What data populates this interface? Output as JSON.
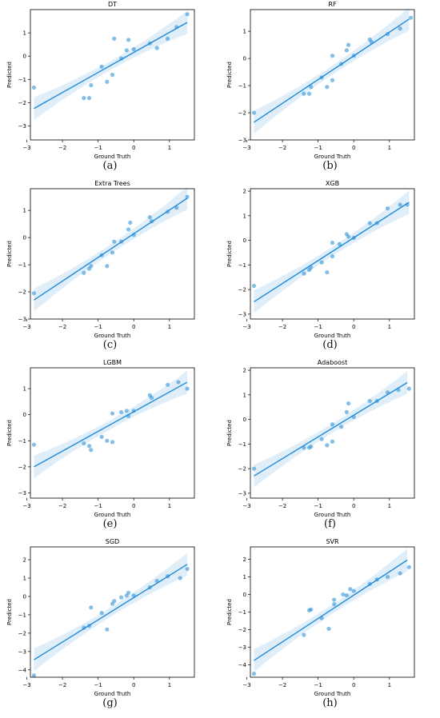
{
  "figure": {
    "captions": [
      "(a)",
      "(b)",
      "(c)",
      "(d)",
      "(e)",
      "(f)",
      "(g)",
      "(h)"
    ]
  },
  "chart_data": [
    {
      "type": "scatter",
      "title": "DT",
      "xlabel": "Ground Truth",
      "ylabel": "Predicted",
      "xlim": [
        -2.9,
        1.7
      ],
      "ylim": [
        -3.6,
        2.0
      ],
      "xticks": [
        -3,
        -2,
        -1,
        0,
        1
      ],
      "yticks": [
        -3,
        -2,
        -1,
        0,
        1
      ],
      "tick_labels_x": [
        "−3",
        "−2",
        "−1",
        "0",
        "1"
      ],
      "tick_labels_y": [
        "−3",
        "−2",
        "−1",
        "0",
        "1"
      ],
      "points": [
        [
          -2.8,
          -1.35
        ],
        [
          -1.4,
          -1.8
        ],
        [
          -1.25,
          -1.8
        ],
        [
          -1.2,
          -1.25
        ],
        [
          -0.9,
          -0.45
        ],
        [
          -0.75,
          -1.1
        ],
        [
          -0.6,
          -0.8
        ],
        [
          -0.55,
          0.75
        ],
        [
          -0.35,
          -0.1
        ],
        [
          -0.2,
          0.25
        ],
        [
          -0.15,
          0.7
        ],
        [
          0.0,
          0.3
        ],
        [
          0.45,
          0.55
        ],
        [
          0.65,
          0.35
        ],
        [
          0.95,
          0.75
        ],
        [
          1.2,
          1.25
        ],
        [
          1.5,
          1.8
        ]
      ],
      "fit": [
        [
          -2.8,
          -2.25
        ],
        [
          1.5,
          1.45
        ]
      ],
      "grid": false,
      "color": "#1f8ad6"
    },
    {
      "type": "scatter",
      "title": "RF",
      "xlabel": "Ground Truth",
      "ylabel": "Predicted",
      "xlim": [
        -2.9,
        1.7
      ],
      "ylim": [
        -3.0,
        1.8
      ],
      "xticks": [
        -3,
        -2,
        -1,
        0,
        1
      ],
      "yticks": [
        -3,
        -2,
        -1,
        0,
        1
      ],
      "tick_labels_x": [
        "−3",
        "−2",
        "−1",
        "0",
        "1"
      ],
      "tick_labels_y": [
        "−3",
        "−2",
        "−1",
        "0",
        "1"
      ],
      "points": [
        [
          -2.8,
          -2.0
        ],
        [
          -1.4,
          -1.3
        ],
        [
          -1.25,
          -1.3
        ],
        [
          -1.2,
          -1.05
        ],
        [
          -0.9,
          -0.7
        ],
        [
          -0.75,
          -1.05
        ],
        [
          -0.6,
          -0.8
        ],
        [
          -0.6,
          0.1
        ],
        [
          -0.35,
          -0.2
        ],
        [
          -0.2,
          0.3
        ],
        [
          -0.15,
          0.5
        ],
        [
          0.0,
          0.1
        ],
        [
          0.45,
          0.7
        ],
        [
          0.5,
          0.6
        ],
        [
          0.95,
          0.9
        ],
        [
          1.3,
          1.1
        ],
        [
          1.6,
          1.5
        ]
      ],
      "fit": [
        [
          -2.8,
          -2.35
        ],
        [
          1.55,
          1.45
        ]
      ],
      "grid": false,
      "color": "#1f8ad6"
    },
    {
      "type": "scatter",
      "title": "Extra Trees",
      "xlabel": "Ground Truth",
      "ylabel": "Predicted",
      "xlim": [
        -2.9,
        1.7
      ],
      "ylim": [
        -3.0,
        1.8
      ],
      "xticks": [
        -3,
        -2,
        -1,
        0,
        1
      ],
      "yticks": [
        -3,
        -2,
        -1,
        0,
        1
      ],
      "tick_labels_x": [
        "−3",
        "−2",
        "−1",
        "0",
        "1"
      ],
      "tick_labels_y": [
        "−3",
        "−2",
        "−1",
        "0",
        "1"
      ],
      "points": [
        [
          -2.8,
          -2.05
        ],
        [
          -1.4,
          -1.3
        ],
        [
          -1.25,
          -1.15
        ],
        [
          -1.2,
          -1.05
        ],
        [
          -0.9,
          -0.65
        ],
        [
          -0.75,
          -1.05
        ],
        [
          -0.6,
          -0.55
        ],
        [
          -0.55,
          -0.15
        ],
        [
          -0.35,
          -0.15
        ],
        [
          -0.15,
          0.3
        ],
        [
          -0.1,
          0.55
        ],
        [
          0.0,
          0.1
        ],
        [
          0.45,
          0.75
        ],
        [
          0.5,
          0.6
        ],
        [
          0.95,
          0.95
        ],
        [
          1.2,
          1.1
        ],
        [
          1.5,
          1.5
        ]
      ],
      "fit": [
        [
          -2.8,
          -2.3
        ],
        [
          1.5,
          1.45
        ]
      ],
      "grid": false,
      "color": "#1f8ad6"
    },
    {
      "type": "scatter",
      "title": "XGB",
      "xlabel": "Ground Truth",
      "ylabel": "Predicted",
      "xlim": [
        -2.9,
        1.7
      ],
      "ylim": [
        -3.2,
        2.1
      ],
      "xticks": [
        -3,
        -2,
        -1,
        0,
        1
      ],
      "yticks": [
        -3,
        -2,
        -1,
        0,
        1,
        2
      ],
      "tick_labels_x": [
        "−3",
        "−2",
        "−1",
        "0",
        "1"
      ],
      "tick_labels_y": [
        "−3",
        "−2",
        "−1",
        "0",
        "1",
        "2"
      ],
      "points": [
        [
          -2.8,
          -1.85
        ],
        [
          -1.4,
          -1.35
        ],
        [
          -1.25,
          -1.2
        ],
        [
          -1.2,
          -1.1
        ],
        [
          -0.9,
          -0.9
        ],
        [
          -0.75,
          -1.3
        ],
        [
          -0.6,
          -0.65
        ],
        [
          -0.6,
          -0.1
        ],
        [
          -0.4,
          -0.15
        ],
        [
          -0.2,
          0.25
        ],
        [
          -0.15,
          0.15
        ],
        [
          0.0,
          0.1
        ],
        [
          0.45,
          0.7
        ],
        [
          0.65,
          0.7
        ],
        [
          0.95,
          1.3
        ],
        [
          1.3,
          1.45
        ],
        [
          1.5,
          1.45
        ]
      ],
      "fit": [
        [
          -2.8,
          -2.5
        ],
        [
          1.55,
          1.55
        ]
      ],
      "grid": false,
      "color": "#1f8ad6"
    },
    {
      "type": "scatter",
      "title": "LGBM",
      "xlabel": "Ground Truth",
      "ylabel": "Predicted",
      "xlim": [
        -2.9,
        1.7
      ],
      "ylim": [
        -3.2,
        1.8
      ],
      "xticks": [
        -3,
        -2,
        -1,
        0,
        1
      ],
      "yticks": [
        -3,
        -2,
        -1,
        0,
        1
      ],
      "tick_labels_x": [
        "−3",
        "−2",
        "−1",
        "0",
        "1"
      ],
      "tick_labels_y": [
        "−3",
        "−2",
        "−1",
        "0",
        "1"
      ],
      "points": [
        [
          -2.8,
          -1.15
        ],
        [
          -1.4,
          -1.1
        ],
        [
          -1.25,
          -1.2
        ],
        [
          -1.2,
          -1.35
        ],
        [
          -0.9,
          -0.85
        ],
        [
          -0.75,
          -1.0
        ],
        [
          -0.6,
          -1.05
        ],
        [
          -0.6,
          0.05
        ],
        [
          -0.35,
          0.1
        ],
        [
          -0.2,
          0.15
        ],
        [
          -0.15,
          -0.05
        ],
        [
          0.0,
          0.15
        ],
        [
          0.45,
          0.75
        ],
        [
          0.5,
          0.65
        ],
        [
          0.95,
          1.15
        ],
        [
          1.25,
          1.25
        ],
        [
          1.5,
          1.0
        ]
      ],
      "fit": [
        [
          -2.8,
          -2.0
        ],
        [
          1.5,
          1.25
        ]
      ],
      "grid": false,
      "color": "#1f8ad6"
    },
    {
      "type": "scatter",
      "title": "Adaboost",
      "xlabel": "Ground Truth",
      "ylabel": "Predicted",
      "xlim": [
        -2.9,
        1.7
      ],
      "ylim": [
        -3.2,
        2.1
      ],
      "xticks": [
        -3,
        -2,
        -1,
        0,
        1
      ],
      "yticks": [
        -3,
        -2,
        -1,
        0,
        1,
        2
      ],
      "tick_labels_x": [
        "−3",
        "−2",
        "−1",
        "0",
        "1"
      ],
      "tick_labels_y": [
        "−3",
        "−2",
        "−1",
        "0",
        "1",
        "2"
      ],
      "points": [
        [
          -2.8,
          -2.0
        ],
        [
          -1.4,
          -1.15
        ],
        [
          -1.25,
          -1.15
        ],
        [
          -1.2,
          -1.1
        ],
        [
          -0.9,
          -0.8
        ],
        [
          -0.75,
          -1.05
        ],
        [
          -0.6,
          -0.9
        ],
        [
          -0.6,
          -0.2
        ],
        [
          -0.35,
          -0.3
        ],
        [
          -0.2,
          0.3
        ],
        [
          -0.15,
          0.65
        ],
        [
          0.0,
          0.1
        ],
        [
          0.45,
          0.75
        ],
        [
          0.65,
          0.75
        ],
        [
          0.95,
          1.1
        ],
        [
          1.25,
          1.2
        ],
        [
          1.55,
          1.25
        ]
      ],
      "fit": [
        [
          -2.8,
          -2.3
        ],
        [
          1.5,
          1.5
        ]
      ],
      "grid": false,
      "color": "#1f8ad6"
    },
    {
      "type": "scatter",
      "title": "SGD",
      "xlabel": "Ground Truth",
      "ylabel": "Predicted",
      "xlim": [
        -2.9,
        1.7
      ],
      "ylim": [
        -4.4,
        2.7
      ],
      "xticks": [
        -3,
        -2,
        -1,
        0,
        1
      ],
      "yticks": [
        -4,
        -3,
        -2,
        -1,
        0,
        1,
        2
      ],
      "tick_labels_x": [
        "−3",
        "−2",
        "−1",
        "0",
        "1"
      ],
      "tick_labels_y": [
        "−4",
        "−3",
        "−2",
        "−1",
        "0",
        "1",
        "2"
      ],
      "points": [
        [
          -2.8,
          -4.3
        ],
        [
          -1.4,
          -1.7
        ],
        [
          -1.25,
          -1.6
        ],
        [
          -1.2,
          -0.6
        ],
        [
          -0.9,
          -0.9
        ],
        [
          -0.75,
          -1.8
        ],
        [
          -0.6,
          -0.4
        ],
        [
          -0.55,
          -0.25
        ],
        [
          -0.35,
          -0.05
        ],
        [
          -0.2,
          0.05
        ],
        [
          -0.15,
          0.2
        ],
        [
          0.0,
          0.05
        ],
        [
          0.45,
          0.5
        ],
        [
          0.65,
          0.85
        ],
        [
          0.95,
          1.1
        ],
        [
          1.3,
          1.0
        ],
        [
          1.5,
          1.5
        ]
      ],
      "fit": [
        [
          -2.8,
          -3.45
        ],
        [
          1.5,
          1.75
        ]
      ],
      "grid": false,
      "color": "#1f8ad6"
    },
    {
      "type": "scatter",
      "title": "SVR",
      "xlabel": "Ground Truth",
      "ylabel": "Predicted",
      "xlim": [
        -2.9,
        1.7
      ],
      "ylim": [
        -4.7,
        2.7
      ],
      "xticks": [
        -3,
        -2,
        -1,
        0,
        1
      ],
      "yticks": [
        -4,
        -3,
        -2,
        -1,
        0,
        1,
        2
      ],
      "tick_labels_x": [
        "−3",
        "−2",
        "−1",
        "0",
        "1"
      ],
      "tick_labels_y": [
        "−4",
        "−3",
        "−2",
        "−1",
        "0",
        "1",
        "2"
      ],
      "points": [
        [
          -2.8,
          -4.5
        ],
        [
          -1.4,
          -2.3
        ],
        [
          -1.25,
          -0.9
        ],
        [
          -1.2,
          -0.85
        ],
        [
          -0.9,
          -1.35
        ],
        [
          -0.7,
          -1.95
        ],
        [
          -0.55,
          -0.3
        ],
        [
          -0.55,
          -0.55
        ],
        [
          -0.3,
          0.0
        ],
        [
          -0.2,
          -0.05
        ],
        [
          -0.1,
          0.3
        ],
        [
          0.0,
          0.2
        ],
        [
          0.45,
          0.6
        ],
        [
          0.65,
          0.85
        ],
        [
          0.95,
          1.0
        ],
        [
          1.3,
          1.2
        ],
        [
          1.55,
          1.55
        ]
      ],
      "fit": [
        [
          -2.8,
          -3.75
        ],
        [
          1.5,
          1.95
        ]
      ],
      "grid": false,
      "color": "#1f8ad6"
    }
  ]
}
